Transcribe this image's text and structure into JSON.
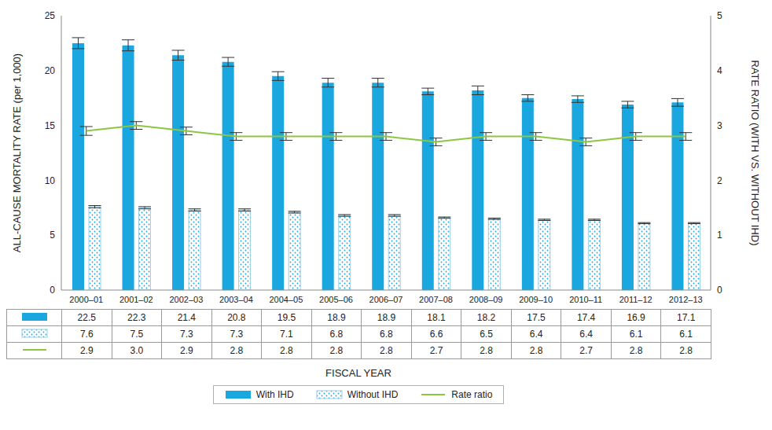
{
  "chart_data": {
    "type": "bar",
    "categories": [
      "2000–01",
      "2001–02",
      "2002–03",
      "2003–04",
      "2004–05",
      "2005–06",
      "2006–07",
      "2007–08",
      "2008–09",
      "2009–10",
      "2010–11",
      "2011–12",
      "2012–13"
    ],
    "x_label": "FISCAL YEAR",
    "y_label": "ALL-CAUSE MORTALITY RATE (per 1,000)",
    "y2_label": "RATE RATIO (WITH VS. WITHOUT IHD)",
    "ylim": [
      0,
      25
    ],
    "yticks": [
      0,
      5,
      10,
      15,
      20,
      25
    ],
    "y2lim": [
      0,
      5
    ],
    "y2ticks": [
      0,
      1,
      2,
      3,
      4,
      5
    ],
    "grid": false,
    "legend": "bottom",
    "series": [
      {
        "name": "With IHD",
        "type": "bar",
        "color": "#1aa7df",
        "axis": "y",
        "values": [
          22.5,
          22.3,
          21.4,
          20.8,
          19.5,
          18.9,
          18.9,
          18.1,
          18.2,
          17.5,
          17.4,
          16.9,
          17.1
        ],
        "errors": [
          0.5,
          0.5,
          0.45,
          0.4,
          0.4,
          0.4,
          0.4,
          0.3,
          0.4,
          0.3,
          0.3,
          0.3,
          0.35
        ]
      },
      {
        "name": "Without IHD",
        "type": "bar",
        "color": "#1aa7df",
        "axis": "y",
        "values": [
          7.6,
          7.5,
          7.3,
          7.3,
          7.1,
          6.8,
          6.8,
          6.6,
          6.5,
          6.4,
          6.4,
          6.1,
          6.1
        ],
        "errors": [
          0.1,
          0.1,
          0.1,
          0.1,
          0.08,
          0.08,
          0.08,
          0.06,
          0.06,
          0.06,
          0.06,
          0.05,
          0.05
        ]
      },
      {
        "name": "Rate ratio",
        "type": "line",
        "color": "#8dc63f",
        "axis": "y2",
        "marker": "none",
        "values": [
          2.9,
          3.0,
          2.9,
          2.8,
          2.8,
          2.8,
          2.8,
          2.7,
          2.8,
          2.8,
          2.7,
          2.8,
          2.8
        ],
        "value_labels": [
          "2.9",
          "3.0",
          "2.9",
          "2.8",
          "2.8",
          "2.8",
          "2.8",
          "2.7",
          "2.8",
          "2.8",
          "2.7",
          "2.8",
          "2.8"
        ],
        "errors": [
          0.08,
          0.07,
          0.07,
          0.07,
          0.07,
          0.07,
          0.07,
          0.07,
          0.07,
          0.07,
          0.07,
          0.07,
          0.07
        ]
      }
    ]
  }
}
